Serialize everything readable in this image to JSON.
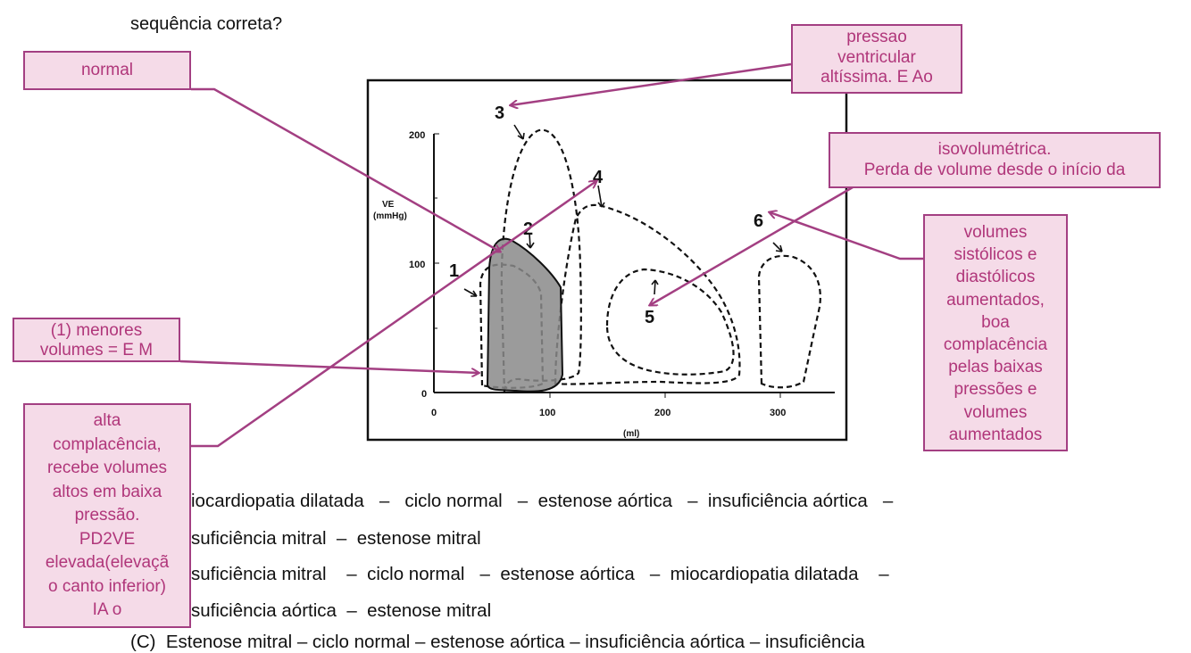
{
  "question": {
    "tail": "sequência correta?"
  },
  "figure": {
    "y_axis_title": [
      "VE",
      "(mmHg)"
    ],
    "y_ticks": [
      "0",
      "100",
      "200"
    ],
    "x_ticks": [
      "0",
      "100",
      "200",
      "300"
    ],
    "x_axis_title": "(ml)",
    "loop_labels": [
      "1",
      "2",
      "3",
      "4",
      "5",
      "6"
    ]
  },
  "annotations": {
    "normal": "normal",
    "aortic_stenosis": [
      "pressao",
      "ventricular",
      "altíssima. E Ao"
    ],
    "isovolumetric": [
      "isovolumétrica.",
      "Perda de volume desde o início da"
    ],
    "aortic_insufficiency": [
      "volumes",
      "sistólicos e",
      "diastólicos",
      "aumentados,",
      "boa",
      "complacência",
      "pelas baixas",
      "pressões e",
      "volumes",
      "aumentados"
    ],
    "mitral_stenosis": [
      "(1) menores",
      "volumes = E M"
    ],
    "dilated": [
      "alta",
      "complacência,",
      "recebe volumes",
      "altos em baixa",
      "pressão.",
      "PD2VE",
      "elevada(elevaçã",
      "o canto inferior)",
      "IA o"
    ]
  },
  "options": {
    "a1": "iocardiopatia dilatada   –   ciclo normal   –  estenose aórtica   –  insuficiência aórtica   –",
    "a2": "suficiência mitral  –  estenose mitral",
    "b1": "suficiência mitral    –  ciclo normal   –  estenose aórtica   –  miocardiopatia dilatada    –",
    "b2": "suficiência aórtica  –  estenose mitral",
    "c1": "(C)  Estenose mitral – ciclo normal – estenose aórtica – insuficiência aórtica – insuficiência"
  },
  "colors": {
    "box_fill": "#f5dbe8",
    "box_border": "#a33f82",
    "arrow": "#a33f82",
    "text": "#b0367a"
  }
}
